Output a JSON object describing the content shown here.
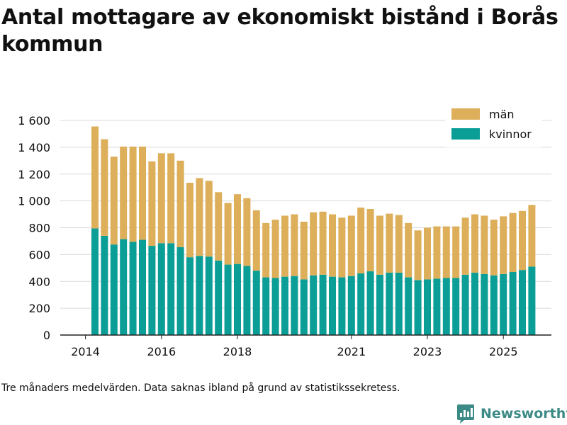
{
  "chart_data": {
    "type": "bar",
    "stacked": true,
    "title": "Antal mottagare av ekonomiskt bistånd i Borås kommun",
    "caption": "Tre månaders medelvärden. Data saknas ibland på grund av statistikssekretess.",
    "xlabel": "",
    "ylabel": "",
    "ylim": [
      0,
      1650
    ],
    "y_ticks": [
      0,
      200,
      400,
      600,
      800,
      1000,
      1200,
      1400,
      1600
    ],
    "y_tick_labels": [
      "0",
      "200",
      "400",
      "600",
      "800",
      "1 000",
      "1 200",
      "1 400",
      "1 600"
    ],
    "x_ticks": [
      {
        "label": "2014",
        "bar_index": -1
      },
      {
        "label": "2016",
        "bar_index": 7
      },
      {
        "label": "2018",
        "bar_index": 15
      },
      {
        "label": "2021",
        "bar_index": 27
      },
      {
        "label": "2023",
        "bar_index": 35
      },
      {
        "label": "2025",
        "bar_index": 43
      }
    ],
    "legend_position": "top-right",
    "colors": {
      "kvinnor": "#0a9e96",
      "man": "#ddaf5b"
    },
    "series": [
      {
        "name": "kvinnor",
        "values": [
          795,
          740,
          675,
          715,
          695,
          710,
          665,
          685,
          685,
          655,
          580,
          590,
          585,
          555,
          525,
          530,
          515,
          480,
          430,
          425,
          435,
          440,
          415,
          445,
          450,
          435,
          430,
          440,
          460,
          475,
          450,
          465,
          465,
          430,
          410,
          415,
          420,
          425,
          425,
          450,
          465,
          455,
          445,
          455,
          470,
          485,
          510
        ]
      },
      {
        "name": "män",
        "values": [
          760,
          720,
          655,
          690,
          710,
          695,
          630,
          670,
          670,
          645,
          555,
          580,
          565,
          510,
          460,
          520,
          505,
          450,
          405,
          435,
          455,
          460,
          430,
          470,
          470,
          465,
          445,
          450,
          490,
          465,
          440,
          440,
          430,
          405,
          370,
          385,
          390,
          385,
          385,
          425,
          435,
          435,
          415,
          430,
          440,
          440,
          460
        ]
      }
    ]
  },
  "legend": {
    "items": [
      "män",
      "kvinnor"
    ]
  },
  "brand": {
    "name": "Newsworthy"
  }
}
